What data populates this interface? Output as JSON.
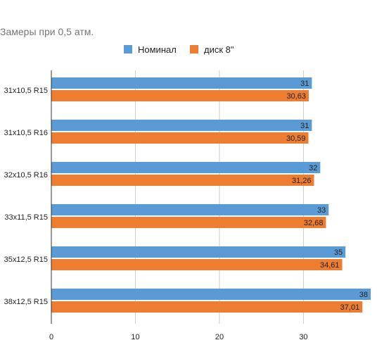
{
  "chart_data": {
    "type": "bar",
    "orientation": "horizontal",
    "title": "Замеры при 0,5 атм.",
    "categories": [
      "31x10,5 R15",
      "31x10,5 R16",
      "32x10,5 R16",
      "33x11,5 R15",
      "35x12,5 R15",
      "38x12,5 R15"
    ],
    "series": [
      {
        "name": "Номинал",
        "color": "#5b9bd5",
        "values": [
          31,
          31,
          32,
          33,
          35,
          38
        ],
        "labels": [
          "31",
          "31",
          "32",
          "33",
          "35",
          "38"
        ]
      },
      {
        "name": "диск 8\"",
        "color": "#ed7d31",
        "values": [
          30.63,
          30.59,
          31.26,
          32.68,
          34.61,
          37.01
        ],
        "labels": [
          "30,63",
          "30,59",
          "31,26",
          "32,68",
          "34,61",
          "37,01"
        ]
      }
    ],
    "x_ticks": [
      0,
      10,
      20,
      30
    ],
    "xlim": [
      0,
      38.5
    ],
    "grid": true,
    "legend": "top"
  }
}
